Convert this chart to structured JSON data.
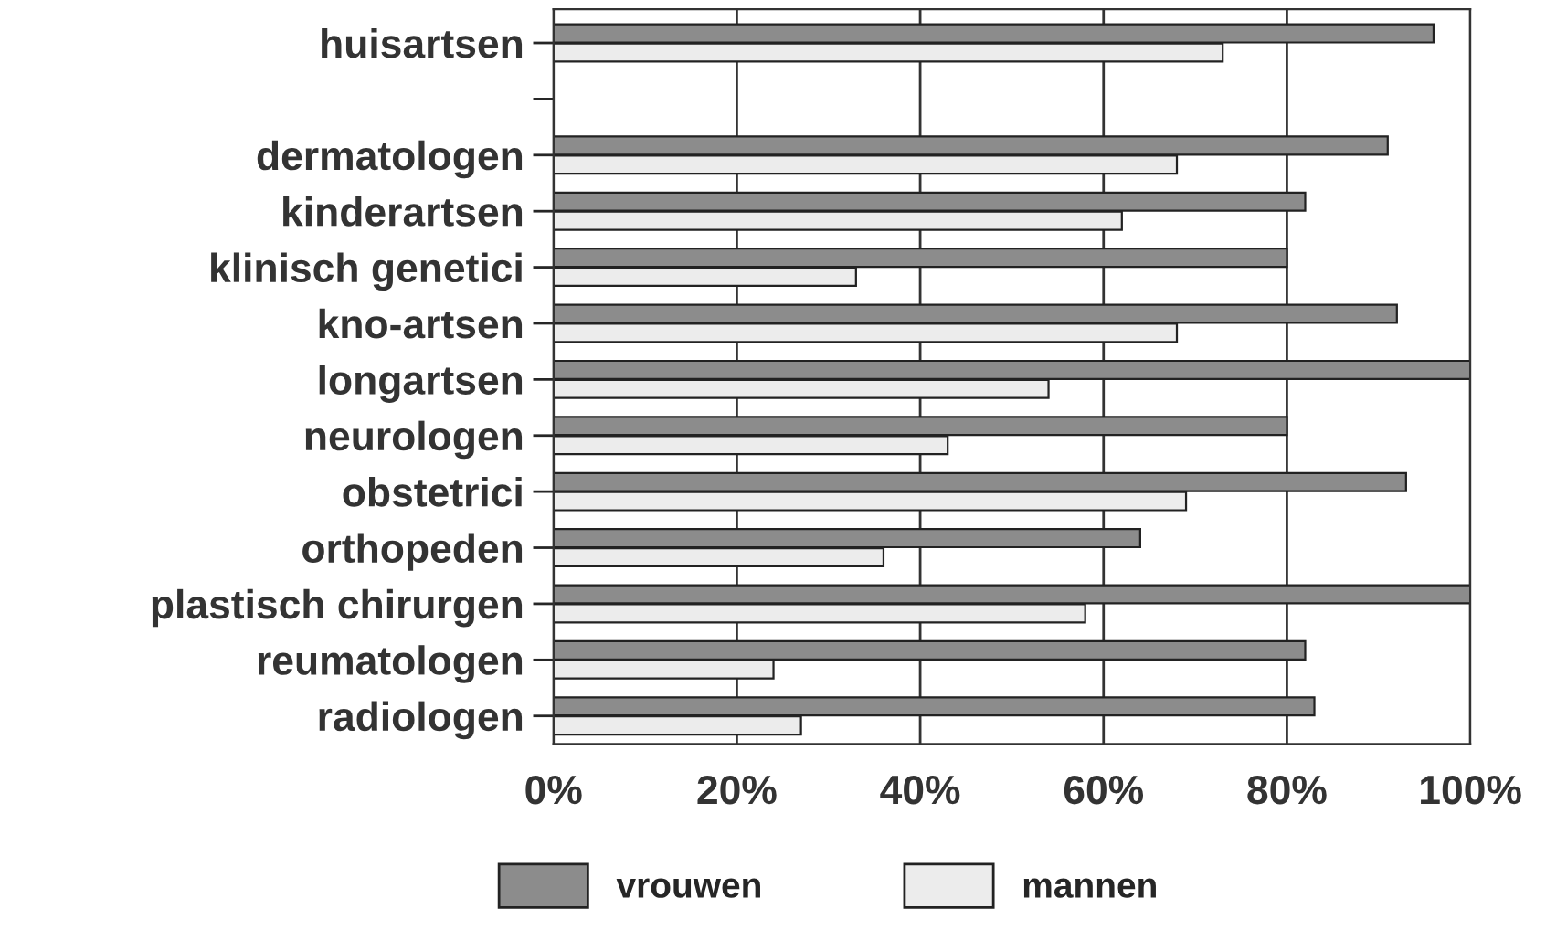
{
  "chart_data": {
    "type": "bar",
    "orientation": "horizontal",
    "categories": [
      "huisartsen",
      null,
      "dermatologen",
      "kinderartsen",
      "klinisch genetici",
      "kno-artsen",
      "longartsen",
      "neurologen",
      "obstetrici",
      "orthopeden",
      "plastisch chirurgen",
      "reumatologen",
      "radiologen"
    ],
    "series": [
      {
        "name": "vrouwen",
        "color": "#8c8c8c",
        "values": [
          96,
          null,
          91,
          82,
          80,
          92,
          100,
          80,
          93,
          64,
          100,
          82,
          83
        ]
      },
      {
        "name": "mannen",
        "color": "#ececec",
        "values": [
          73,
          null,
          68,
          62,
          33,
          68,
          54,
          43,
          69,
          36,
          58,
          24,
          27
        ]
      }
    ],
    "xlim": [
      0,
      100
    ],
    "xticks": [
      {
        "value": 0,
        "label": "0%"
      },
      {
        "value": 20,
        "label": "20%"
      },
      {
        "value": 40,
        "label": "40%"
      },
      {
        "value": 60,
        "label": "60%"
      },
      {
        "value": 80,
        "label": "80%"
      },
      {
        "value": 100,
        "label": "100%"
      }
    ],
    "grid": "x",
    "legend": "bottom"
  }
}
